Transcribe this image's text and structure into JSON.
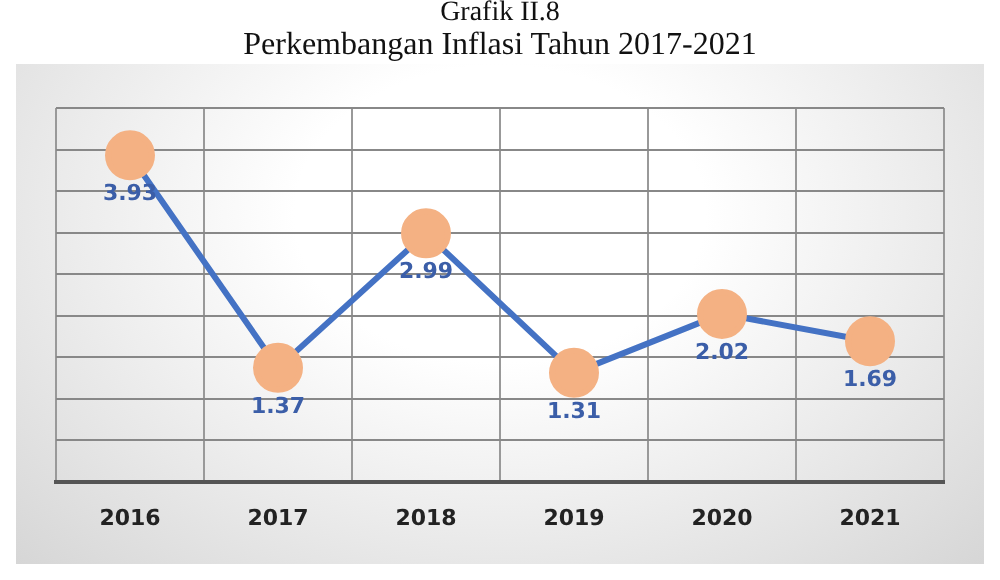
{
  "chart_data": {
    "type": "line",
    "title": "Grafik II.8",
    "subtitle": "Perkembangan Inflasi Tahun 2017-2021",
    "categories": [
      "2016",
      "2017",
      "2018",
      "2019",
      "2020",
      "2021"
    ],
    "series": [
      {
        "color": "#4472c4",
        "colors": [
          "#f4b183",
          "#f4b183",
          "#f4b183",
          "#f4b183",
          "#f4b183",
          "#f4b183"
        ],
        "values": [
          3.93,
          1.37,
          2.99,
          1.31,
          2.02,
          1.69
        ]
      }
    ],
    "ylim": [
      0,
      4.5
    ],
    "yticks": [
      {
        "value": 0,
        "label": null
      },
      {
        "value": 0.5,
        "label": null
      },
      {
        "value": 1,
        "label": null
      },
      {
        "value": 1.5,
        "label": null
      },
      {
        "value": 2,
        "label": null
      },
      {
        "value": 2.5,
        "label": null
      },
      {
        "value": 3,
        "label": null
      },
      {
        "value": 3.5,
        "label": null
      },
      {
        "value": 4,
        "label": null
      },
      {
        "value": 4.5,
        "label": null
      }
    ],
    "tick_labels": "x",
    "grid": true,
    "legend": false,
    "marker": "circle",
    "line_style": "solid",
    "data_labels": true
  }
}
